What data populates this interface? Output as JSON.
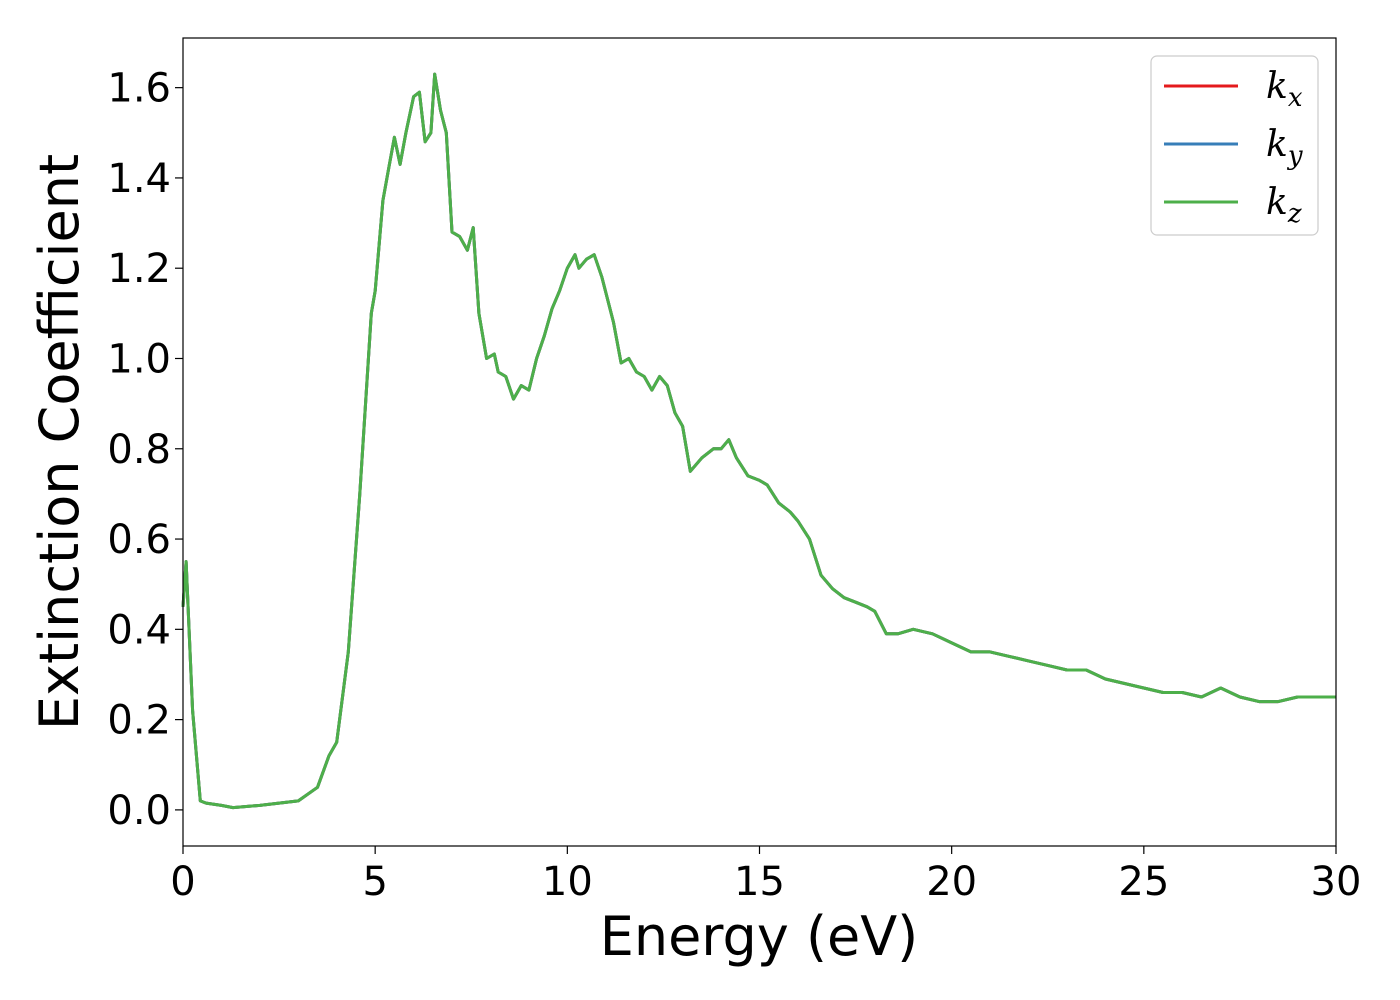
{
  "chart_data": {
    "type": "line",
    "title": "",
    "xlabel": "Energy (eV)",
    "ylabel": "Extinction Coefficient",
    "xlim": [
      0,
      30
    ],
    "ylim": [
      -0.08,
      1.71
    ],
    "x_ticks": [
      "0",
      "5",
      "10",
      "15",
      "20",
      "25",
      "30"
    ],
    "y_ticks": [
      "0.0",
      "0.2",
      "0.4",
      "0.6",
      "0.8",
      "1.0",
      "1.2",
      "1.4",
      "1.6"
    ],
    "grid": false,
    "legend_position": "top-right",
    "series": [
      {
        "name": "k_x",
        "legend": {
          "base": "k",
          "sub": "x"
        },
        "color": "#e41a1c",
        "x": [
          0,
          0.08,
          0.25,
          0.45,
          0.6,
          1.0,
          1.3,
          2.0,
          3.0,
          3.5,
          3.8,
          4.0,
          4.3,
          4.6,
          4.9,
          5.0,
          5.2,
          5.35,
          5.5,
          5.65,
          5.8,
          6.0,
          6.15,
          6.3,
          6.45,
          6.55,
          6.7,
          6.85,
          7.0,
          7.2,
          7.4,
          7.55,
          7.7,
          7.9,
          8.1,
          8.2,
          8.4,
          8.6,
          8.8,
          9.0,
          9.2,
          9.4,
          9.6,
          9.8,
          10.0,
          10.2,
          10.3,
          10.5,
          10.7,
          10.9,
          11.2,
          11.4,
          11.6,
          11.8,
          12.0,
          12.2,
          12.4,
          12.6,
          12.8,
          13.0,
          13.2,
          13.5,
          13.8,
          14.0,
          14.2,
          14.4,
          14.7,
          15.0,
          15.2,
          15.5,
          15.8,
          16.0,
          16.3,
          16.6,
          16.9,
          17.2,
          17.5,
          17.8,
          18.0,
          18.3,
          18.6,
          19.0,
          19.5,
          20.0,
          20.5,
          21.0,
          21.5,
          22.0,
          22.5,
          23.0,
          23.5,
          24.0,
          24.5,
          25.0,
          25.5,
          26.0,
          26.5,
          27.0,
          27.5,
          28.0,
          28.5,
          29.0,
          29.5,
          30.0
        ],
        "y": [
          0.45,
          0.55,
          0.22,
          0.02,
          0.015,
          0.01,
          0.005,
          0.01,
          0.02,
          0.05,
          0.12,
          0.15,
          0.35,
          0.7,
          1.1,
          1.15,
          1.35,
          1.42,
          1.49,
          1.43,
          1.5,
          1.58,
          1.59,
          1.48,
          1.5,
          1.63,
          1.55,
          1.5,
          1.28,
          1.27,
          1.24,
          1.29,
          1.1,
          1.0,
          1.01,
          0.97,
          0.96,
          0.91,
          0.94,
          0.93,
          1.0,
          1.05,
          1.11,
          1.15,
          1.2,
          1.23,
          1.2,
          1.22,
          1.23,
          1.18,
          1.08,
          0.99,
          1.0,
          0.97,
          0.96,
          0.93,
          0.96,
          0.94,
          0.88,
          0.85,
          0.75,
          0.78,
          0.8,
          0.8,
          0.82,
          0.78,
          0.74,
          0.73,
          0.72,
          0.68,
          0.66,
          0.64,
          0.6,
          0.52,
          0.49,
          0.47,
          0.46,
          0.45,
          0.44,
          0.39,
          0.39,
          0.4,
          0.39,
          0.37,
          0.35,
          0.35,
          0.34,
          0.33,
          0.32,
          0.31,
          0.31,
          0.29,
          0.28,
          0.27,
          0.26,
          0.26,
          0.25,
          0.27,
          0.25,
          0.24,
          0.24,
          0.25,
          0.25,
          0.25
        ]
      },
      {
        "name": "k_y",
        "legend": {
          "base": "k",
          "sub": "y"
        },
        "color": "#377eb8",
        "same_as": "k_x"
      },
      {
        "name": "k_z",
        "legend": {
          "base": "k",
          "sub": "z"
        },
        "color": "#4daf4a",
        "same_as": "k_x"
      }
    ]
  }
}
